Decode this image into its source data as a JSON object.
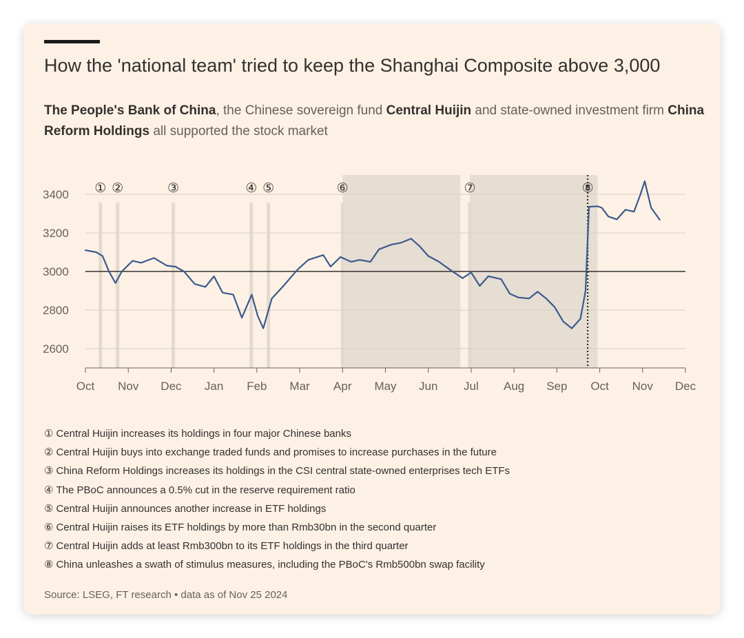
{
  "title": "How the 'national team' tried to keep the Shanghai Composite above 3,000",
  "subtitle": {
    "p1": "The People's Bank of China",
    "p2": ", the Chinese sovereign fund ",
    "p3": "Central Huijin",
    "p4": " and state-owned investment firm ",
    "p5": "China Reform Holdings",
    "p6": " all supported the stock market"
  },
  "chart_data": {
    "type": "line",
    "title": "Shanghai Composite",
    "series": [
      {
        "name": "Shanghai Composite",
        "color": "#3a5a8c",
        "points": [
          [
            0,
            3110
          ],
          [
            0.25,
            3100
          ],
          [
            0.4,
            3080
          ],
          [
            0.55,
            3000
          ],
          [
            0.7,
            2940
          ],
          [
            0.85,
            3000
          ],
          [
            1.1,
            3055
          ],
          [
            1.3,
            3045
          ],
          [
            1.6,
            3070
          ],
          [
            1.9,
            3030
          ],
          [
            2.1,
            3025
          ],
          [
            2.3,
            3000
          ],
          [
            2.55,
            2935
          ],
          [
            2.8,
            2920
          ],
          [
            3.0,
            2975
          ],
          [
            3.2,
            2890
          ],
          [
            3.45,
            2880
          ],
          [
            3.65,
            2760
          ],
          [
            3.88,
            2880
          ],
          [
            4.02,
            2770
          ],
          [
            4.15,
            2705
          ],
          [
            4.35,
            2860
          ],
          [
            4.6,
            2920
          ],
          [
            4.95,
            3010
          ],
          [
            5.2,
            3060
          ],
          [
            5.55,
            3085
          ],
          [
            5.72,
            3025
          ],
          [
            5.95,
            3075
          ],
          [
            6.2,
            3050
          ],
          [
            6.4,
            3060
          ],
          [
            6.65,
            3050
          ],
          [
            6.85,
            3115
          ],
          [
            7.15,
            3140
          ],
          [
            7.35,
            3148
          ],
          [
            7.6,
            3170
          ],
          [
            7.8,
            3130
          ],
          [
            8.0,
            3080
          ],
          [
            8.25,
            3050
          ],
          [
            8.5,
            3010
          ],
          [
            8.8,
            2965
          ],
          [
            9.0,
            2995
          ],
          [
            9.2,
            2925
          ],
          [
            9.4,
            2975
          ],
          [
            9.7,
            2960
          ],
          [
            9.9,
            2885
          ],
          [
            10.1,
            2865
          ],
          [
            10.35,
            2860
          ],
          [
            10.55,
            2895
          ],
          [
            10.75,
            2860
          ],
          [
            10.95,
            2815
          ],
          [
            11.15,
            2740
          ],
          [
            11.35,
            2705
          ],
          [
            11.55,
            2755
          ],
          [
            11.67,
            2900
          ],
          [
            11.75,
            3335
          ],
          [
            11.95,
            3338
          ],
          [
            12.05,
            3330
          ],
          [
            12.2,
            3285
          ],
          [
            12.4,
            3270
          ],
          [
            12.6,
            3320
          ],
          [
            12.8,
            3310
          ],
          [
            12.95,
            3400
          ],
          [
            13.05,
            3468
          ],
          [
            13.2,
            3330
          ],
          [
            13.4,
            3268
          ]
        ]
      }
    ],
    "x_ticks": [
      {
        "value": 0,
        "label": "Oct"
      },
      {
        "value": 1,
        "label": "Nov"
      },
      {
        "value": 2,
        "label": "Dec"
      },
      {
        "value": 3,
        "label": "Jan"
      },
      {
        "value": 4,
        "label": "Feb"
      },
      {
        "value": 5,
        "label": "Mar"
      },
      {
        "value": 6,
        "label": "Apr"
      },
      {
        "value": 7,
        "label": "May"
      },
      {
        "value": 8,
        "label": "Jun"
      },
      {
        "value": 9,
        "label": "Jul"
      },
      {
        "value": 10,
        "label": "Aug"
      },
      {
        "value": 11,
        "label": "Sep"
      },
      {
        "value": 12,
        "label": "Oct"
      },
      {
        "value": 13,
        "label": "Nov"
      },
      {
        "value": 14,
        "label": "Dec"
      }
    ],
    "y_ticks": [
      2600,
      2800,
      3000,
      3200,
      3400
    ],
    "xlim": [
      0,
      14
    ],
    "ylim": [
      2500,
      3500
    ],
    "reference_line": 3000,
    "shaded_periods": [
      [
        6.0,
        8.75
      ],
      [
        8.97,
        11.95
      ]
    ],
    "events": [
      {
        "label": "①",
        "x": 0.35
      },
      {
        "label": "②",
        "x": 0.75
      },
      {
        "label": "③",
        "x": 2.05
      },
      {
        "label": "④",
        "x": 3.87
      },
      {
        "label": "⑤",
        "x": 4.27
      },
      {
        "label": "⑥",
        "x": 6.0
      },
      {
        "label": "⑦",
        "x": 8.97
      },
      {
        "label": "⑧",
        "x": 11.72,
        "dotted": true
      }
    ]
  },
  "notes": [
    {
      "num": "①",
      "text": "Central Huijin increases its holdings in four major Chinese banks"
    },
    {
      "num": "②",
      "text": "Central Huijin buys into exchange traded funds and promises to increase purchases in the future"
    },
    {
      "num": "③",
      "text": "China Reform Holdings increases its holdings in the CSI central state-owned enterprises tech ETFs"
    },
    {
      "num": "④",
      "text": "The PBoC announces a 0.5% cut in the reserve requirement ratio"
    },
    {
      "num": "⑤",
      "text": "Central Huijin announces another increase in ETF holdings"
    },
    {
      "num": "⑥",
      "text": "Central Huijin raises its ETF holdings by more than Rmb30bn in the second quarter"
    },
    {
      "num": "⑦",
      "text": "Central Huijin adds at least Rmb300bn to its ETF holdings in the third quarter"
    },
    {
      "num": "⑧",
      "text": "China unleashes a swath of stimulus measures, including the PBoC's Rmb500bn swap facility"
    }
  ],
  "source": "Source: LSEG, FT research • data as of Nov 25 2024",
  "colors": {
    "background": "#fdf1e5",
    "shade": "#e6ddd3",
    "event_bar": "#e3d9cf",
    "line": "#3a5a8c",
    "grid": "#d9cec3",
    "reference": "#33302e"
  }
}
